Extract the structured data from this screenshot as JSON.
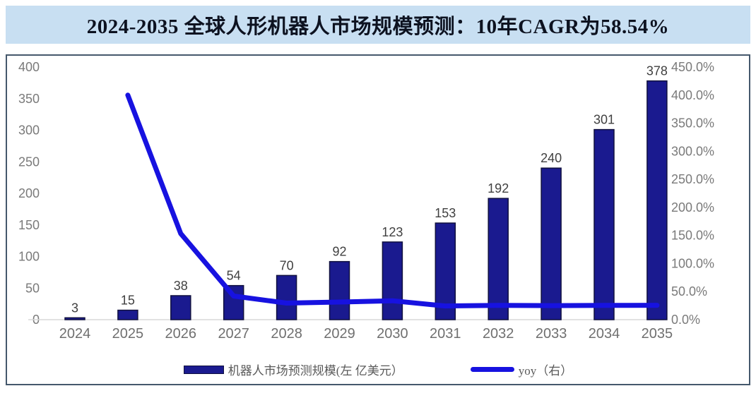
{
  "header": {
    "title": "2024-2035 全球人形机器人市场规模预测：10年CAGR为58.54%"
  },
  "legend": {
    "bar_label": "机器人市场预测规模(左 亿美元）",
    "line_label": "yoy（右）"
  },
  "colors": {
    "header_bg": "#c8dff2",
    "panel_border": "#45586c",
    "bar": "#1a1a8f",
    "bar_stroke": "#11113f",
    "line": "#1712e0",
    "axis_tick_text": "#7a7a7a",
    "x_label_text": "#6f6f6f",
    "value_label_text": "#404040",
    "baseline": "#d8d8d8"
  },
  "chart_data": {
    "type": "bar",
    "title": "2024-2035 全球人形机器人市场规模预测：10年CAGR为58.54%",
    "categories": [
      "2024",
      "2025",
      "2026",
      "2027",
      "2028",
      "2029",
      "2030",
      "2031",
      "2032",
      "2033",
      "2034",
      "2035"
    ],
    "series": [
      {
        "name": "机器人市场预测规模(左 亿美元）",
        "type": "bar",
        "axis": "left",
        "values": [
          3,
          15,
          38,
          54,
          70,
          92,
          123,
          153,
          192,
          240,
          301,
          378
        ]
      },
      {
        "name": "yoy（右）",
        "type": "line",
        "axis": "right",
        "values": [
          null,
          400.0,
          153.3,
          42.1,
          29.6,
          31.4,
          33.7,
          24.4,
          25.5,
          25.0,
          25.4,
          25.6
        ]
      }
    ],
    "left_axis": {
      "min": 0,
      "max": 400,
      "step": 50,
      "ticks": [
        "400",
        "350",
        "300",
        "250",
        "200",
        "150",
        "100",
        "50",
        "0"
      ]
    },
    "right_axis": {
      "min": 0,
      "max": 450,
      "step": 50,
      "ticks": [
        "450.0%",
        "400.0%",
        "350.0%",
        "300.0%",
        "250.0%",
        "200.0%",
        "150.0%",
        "100.0%",
        "50.0%",
        "0.0%"
      ]
    },
    "grid": false,
    "legend_position": "bottom"
  }
}
